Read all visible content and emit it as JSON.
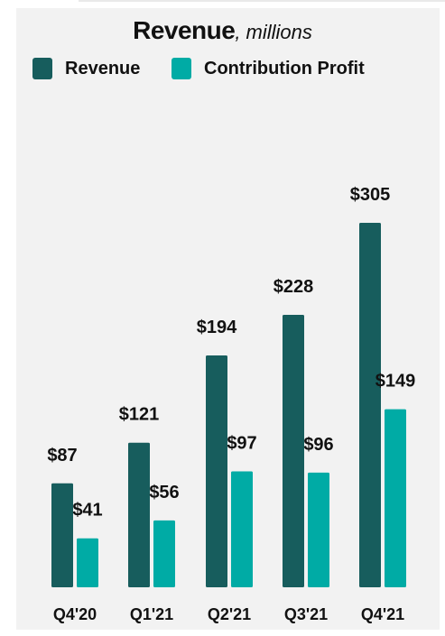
{
  "chart_data": {
    "type": "bar",
    "title": "Revenue",
    "subtitle": "millions",
    "categories": [
      "Q4'20",
      "Q1'21",
      "Q2'21",
      "Q3'21",
      "Q4'21"
    ],
    "series": [
      {
        "name": "Revenue",
        "values": [
          87,
          121,
          194,
          228,
          305
        ],
        "labels": [
          "$87",
          "$121",
          "$194",
          "$228",
          "$305"
        ],
        "color": "#175d5d"
      },
      {
        "name": "Contribution Profit",
        "values": [
          41,
          56,
          97,
          96,
          149
        ],
        "labels": [
          "$41",
          "$56",
          "$97",
          "$96",
          "$149"
        ],
        "color": "#00aba5"
      }
    ],
    "ylim": [
      0,
      305
    ],
    "grid": false,
    "legend": "top-left"
  }
}
